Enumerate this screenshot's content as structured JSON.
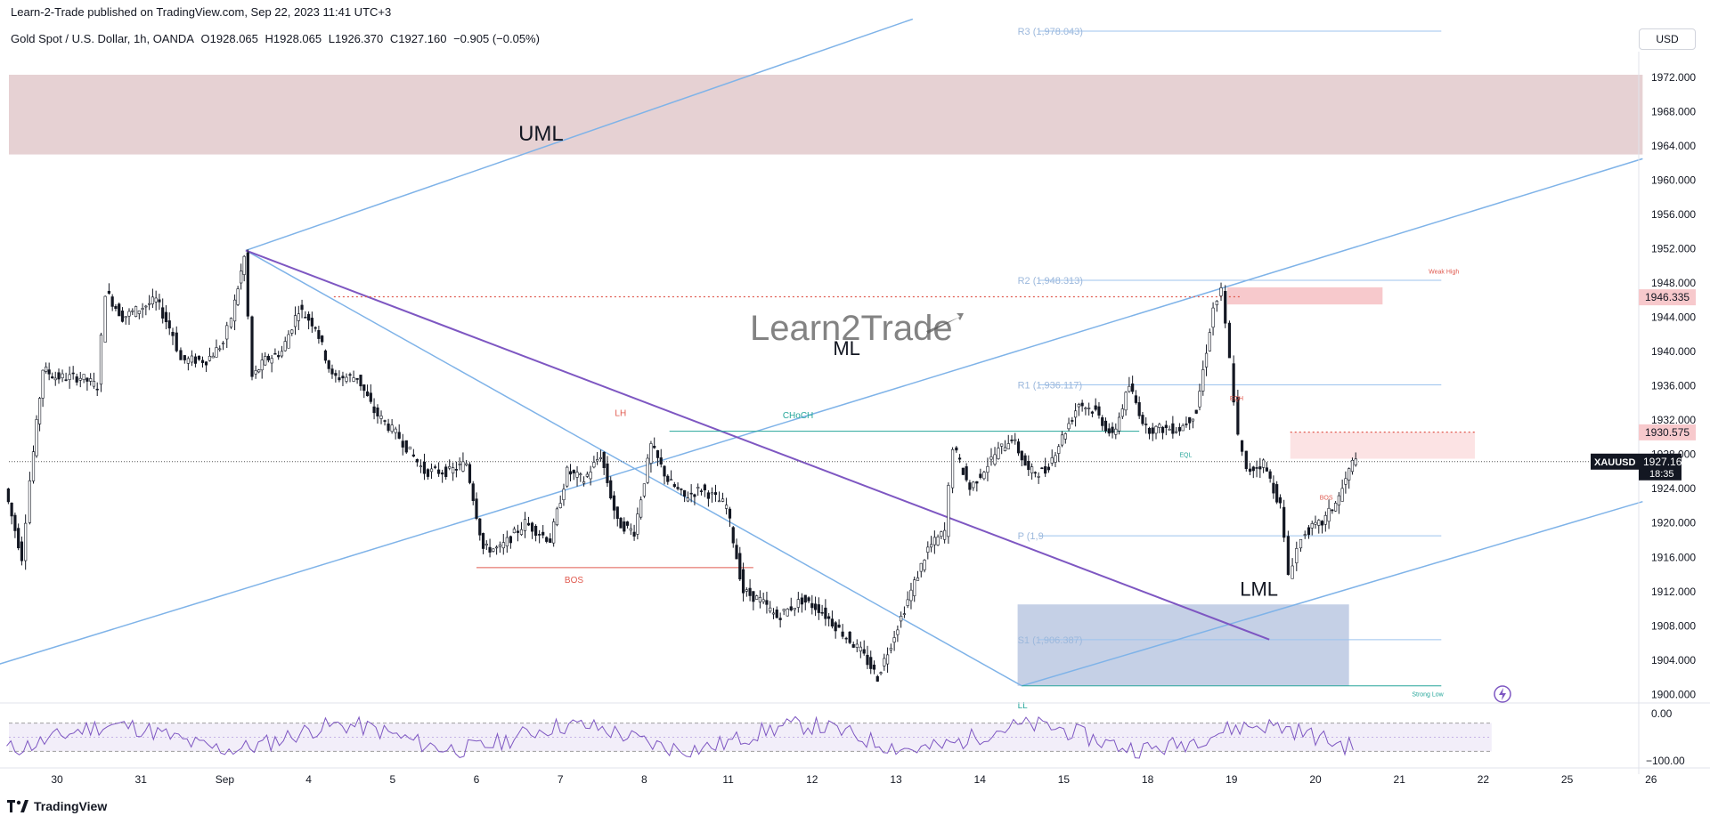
{
  "header": {
    "published": "Learn-2-Trade published on TradingView.com, Sep 22, 2023 11:41 UTC+3",
    "symbol": "Gold Spot / U.S. Dollar, 1h, OANDA",
    "open": "O1928.065",
    "high": "H1928.065",
    "low": "L1926.370",
    "close": "C1927.160",
    "change": "−0.905 (−0.05%)",
    "currency": "USD"
  },
  "footer": {
    "brand": "TradingView"
  },
  "watermark": "Learn2Trade",
  "colors": {
    "up": "#131722",
    "down": "#131722",
    "channel": "#7fb3e8",
    "purple": "#7e57c2",
    "resistance_zone": "#e6d1d3",
    "support_zone": "#c5d0e6",
    "pivot": "#9cc3ee",
    "bos": "#e05a4f",
    "choch": "#26a69a",
    "rsi": "#7e57c2"
  },
  "chart_data": {
    "type": "candlestick",
    "symbol": "XAUUSD",
    "interval": "1h",
    "ylim": [
      1899,
      1975
    ],
    "y_ticks": [
      "1972.000",
      "1968.000",
      "1964.000",
      "1960.000",
      "1956.000",
      "1952.000",
      "1948.000",
      "1944.000",
      "1940.000",
      "1936.000",
      "1932.000",
      "1928.000",
      "1924.000",
      "1920.000",
      "1916.000",
      "1912.000",
      "1908.000",
      "1904.000",
      "1900.000"
    ],
    "x_ticks": [
      "30",
      "31",
      "Sep",
      "4",
      "5",
      "6",
      "7",
      "8",
      "11",
      "12",
      "13",
      "14",
      "15",
      "18",
      "19",
      "20",
      "21",
      "22",
      "25",
      "26"
    ],
    "x_tick_days": [
      0,
      1,
      2,
      3,
      4,
      5,
      6,
      7,
      8,
      9,
      10,
      11,
      12,
      13,
      14,
      15,
      16,
      17,
      18,
      19
    ],
    "price_path": [
      [
        -0.6,
        1924
      ],
      [
        -0.4,
        1916
      ],
      [
        -0.3,
        1925
      ],
      [
        -0.15,
        1938
      ],
      [
        0,
        1937
      ],
      [
        0.3,
        1937
      ],
      [
        0.5,
        1936
      ],
      [
        0.6,
        1947
      ],
      [
        0.8,
        1944
      ],
      [
        1,
        1945
      ],
      [
        1.2,
        1946
      ],
      [
        1.4,
        1942
      ],
      [
        1.5,
        1939
      ],
      [
        1.8,
        1939
      ],
      [
        2,
        1941
      ],
      [
        2.1,
        1944
      ],
      [
        2.25,
        1951
      ],
      [
        2.35,
        1937
      ],
      [
        2.5,
        1939
      ],
      [
        2.7,
        1940
      ],
      [
        2.9,
        1945
      ],
      [
        3.1,
        1943
      ],
      [
        3.3,
        1937
      ],
      [
        3.6,
        1937
      ],
      [
        3.8,
        1933
      ],
      [
        4.1,
        1930
      ],
      [
        4.4,
        1926
      ],
      [
        4.7,
        1926
      ],
      [
        4.9,
        1927
      ],
      [
        5.1,
        1917
      ],
      [
        5.3,
        1917
      ],
      [
        5.6,
        1920
      ],
      [
        5.9,
        1918
      ],
      [
        6.1,
        1926
      ],
      [
        6.3,
        1925
      ],
      [
        6.5,
        1928
      ],
      [
        6.7,
        1920
      ],
      [
        6.9,
        1919
      ],
      [
        7.1,
        1929
      ],
      [
        7.3,
        1925
      ],
      [
        7.5,
        1923
      ],
      [
        7.7,
        1924
      ],
      [
        8.0,
        1922
      ],
      [
        8.2,
        1912
      ],
      [
        8.4,
        1911
      ],
      [
        8.6,
        1909
      ],
      [
        8.9,
        1911
      ],
      [
        9.1,
        1910
      ],
      [
        9.3,
        1908
      ],
      [
        9.6,
        1905
      ],
      [
        9.8,
        1902
      ],
      [
        10.0,
        1907
      ],
      [
        10.2,
        1912
      ],
      [
        10.4,
        1917
      ],
      [
        10.6,
        1919
      ],
      [
        10.7,
        1929
      ],
      [
        10.9,
        1924
      ],
      [
        11.2,
        1928
      ],
      [
        11.4,
        1930
      ],
      [
        11.6,
        1926
      ],
      [
        11.8,
        1926
      ],
      [
        12.0,
        1930
      ],
      [
        12.2,
        1934
      ],
      [
        12.4,
        1933
      ],
      [
        12.6,
        1930
      ],
      [
        12.8,
        1936
      ],
      [
        13.0,
        1931
      ],
      [
        13.2,
        1931
      ],
      [
        13.4,
        1931
      ],
      [
        13.6,
        1933
      ],
      [
        13.8,
        1945
      ],
      [
        13.9,
        1947
      ],
      [
        14.0,
        1939
      ],
      [
        14.1,
        1930
      ],
      [
        14.2,
        1926
      ],
      [
        14.4,
        1927
      ],
      [
        14.6,
        1922
      ],
      [
        14.7,
        1914
      ],
      [
        14.8,
        1917
      ],
      [
        14.9,
        1919
      ],
      [
        15.1,
        1920
      ],
      [
        15.3,
        1923
      ],
      [
        15.5,
        1928
      ]
    ],
    "rsi": {
      "ylim": [
        -100,
        0
      ],
      "ticks": [
        "0.00",
        "−100.00"
      ],
      "band": [
        -20,
        -80
      ]
    },
    "price_labels": [
      {
        "value": 1946.335,
        "text": "1946.335"
      },
      {
        "value": 1930.575,
        "text": "1930.575"
      },
      {
        "value": 1927.16,
        "text": "1927.160",
        "symbol": "XAUUSD",
        "countdown": "18:35"
      }
    ],
    "pivots": [
      {
        "label": "R3 (1,978.043)",
        "value": 1978.043
      },
      {
        "label": "R2 (1,948.313)",
        "value": 1948.313
      },
      {
        "label": "R1 (1,936.117)",
        "value": 1936.117
      },
      {
        "label": "P (1,9",
        "value": 1918.5
      },
      {
        "label": "S1 (1,906.387)",
        "value": 1906.387
      }
    ],
    "zones": [
      {
        "name": "resistance",
        "from": 1963.0,
        "to": 1972.3
      },
      {
        "name": "support",
        "from": 1901.0,
        "to": 1910.5
      },
      {
        "name": "weak-high",
        "from": 1945.5,
        "to": 1947.5
      },
      {
        "name": "supply",
        "from": 1927.5,
        "to": 1930.6
      }
    ],
    "annotations": {
      "uml": "UML",
      "ml": "ML",
      "lml": "LML",
      "lh": "LH",
      "ll": "LL",
      "choch": "CHoCH",
      "bos": "BOS",
      "bos_small": "BOS",
      "eql": "EQL",
      "eqh": "EQH",
      "weak_high": "Weak High",
      "strong_low": "Strong Low"
    }
  }
}
